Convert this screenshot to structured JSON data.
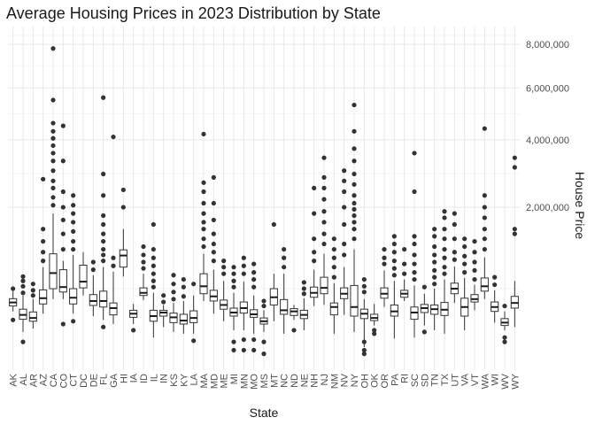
{
  "chart_data": {
    "type": "boxplot",
    "title": "Average Housing Prices in 2023 Distribution by State",
    "xlabel": "State",
    "ylabel": "House Price",
    "y_scale": "sqrt",
    "ylim": [
      0,
      8900000
    ],
    "y_ticks": [
      2000000,
      4000000,
      6000000,
      8000000
    ],
    "y_tick_labels": [
      "2,000,000",
      "4,000,000",
      "6,000,000",
      "8,000,000"
    ],
    "grid": true,
    "categories": [
      "AK",
      "AL",
      "AR",
      "AZ",
      "CA",
      "CO",
      "CT",
      "DC",
      "DE",
      "FL",
      "GA",
      "HI",
      "IA",
      "ID",
      "IL",
      "IN",
      "KS",
      "KY",
      "LA",
      "MA",
      "MD",
      "ME",
      "MI",
      "MN",
      "MO",
      "MS",
      "MT",
      "NC",
      "ND",
      "NE",
      "NH",
      "NJ",
      "NM",
      "NV",
      "NY",
      "OH",
      "OK",
      "OR",
      "PA",
      "RI",
      "SC",
      "SD",
      "TN",
      "TX",
      "UT",
      "VA",
      "VT",
      "WA",
      "WI",
      "WV",
      "WY"
    ],
    "boxes": [
      {
        "lower": 260000,
        "q1": 310000,
        "median": 345000,
        "q3": 385000,
        "upper": 470000,
        "outliers": [
          190000,
          500000
        ]
      },
      {
        "lower": 110000,
        "q1": 195000,
        "median": 230000,
        "q3": 280000,
        "upper": 420000,
        "outliers": [
          60000,
          450000,
          530000,
          600000,
          660000
        ]
      },
      {
        "lower": 130000,
        "q1": 180000,
        "median": 205000,
        "q3": 255000,
        "upper": 380000,
        "outliers": [
          420000,
          480000,
          560000
        ]
      },
      {
        "lower": 240000,
        "q1": 330000,
        "median": 390000,
        "q3": 485000,
        "upper": 800000,
        "outliers": [
          900000,
          1050000,
          1250000,
          1500000,
          2750000
        ]
      },
      {
        "lower": 380000,
        "q1": 500000,
        "median": 710000,
        "q3": 1020000,
        "upper": 1850000,
        "outliers": [
          2050000,
          2250000,
          2500000,
          2700000,
          3000000,
          3300000,
          3550000,
          3800000,
          4050000,
          4300000,
          4600000,
          5500000,
          7800000
        ]
      },
      {
        "lower": 380000,
        "q1": 460000,
        "median": 520000,
        "q3": 760000,
        "upper": 900000,
        "outliers": [
          160000,
          1100000,
          1400000,
          1700000,
          2000000,
          2400000,
          3300000,
          4500000
        ]
      },
      {
        "lower": 240000,
        "q1": 330000,
        "median": 395000,
        "q3": 500000,
        "upper": 1000000,
        "outliers": [
          180000,
          1100000,
          1250000,
          1450000,
          1650000,
          1850000,
          2050000,
          2300000
        ]
      },
      {
        "lower": 420000,
        "q1": 510000,
        "median": 590000,
        "q3": 830000,
        "upper": 1050000,
        "outliers": []
      },
      {
        "lower": 220000,
        "q1": 315000,
        "median": 360000,
        "q3": 430000,
        "upper": 680000,
        "outliers": [
          760000,
          880000
        ]
      },
      {
        "lower": 190000,
        "q1": 300000,
        "median": 360000,
        "q3": 470000,
        "upper": 800000,
        "outliers": [
          140000,
          900000,
          1000000,
          1100000,
          1250000,
          1400000,
          1600000,
          1800000,
          2300000,
          2900000,
          5600000
        ]
      },
      {
        "lower": 160000,
        "q1": 230000,
        "median": 290000,
        "q3": 340000,
        "upper": 730000,
        "outliers": [
          820000,
          950000,
          4100000
        ]
      },
      {
        "lower": 660000,
        "q1": 800000,
        "median": 990000,
        "q3": 1090000,
        "upper": 1500000,
        "outliers": [
          2000000,
          2450000
        ]
      },
      {
        "lower": 160000,
        "q1": 210000,
        "median": 240000,
        "q3": 270000,
        "upper": 330000,
        "outliers": [
          120000
        ]
      },
      {
        "lower": 370000,
        "q1": 420000,
        "median": 450000,
        "q3": 510000,
        "upper": 700000,
        "outliers": [
          780000,
          880000,
          1000000,
          1150000
        ]
      },
      {
        "lower": 80000,
        "q1": 180000,
        "median": 220000,
        "q3": 270000,
        "upper": 450000,
        "outliers": [
          520000,
          600000,
          700000,
          820000,
          950000,
          1100000,
          1600000
        ]
      },
      {
        "lower": 140000,
        "q1": 220000,
        "median": 250000,
        "q3": 270000,
        "upper": 320000,
        "outliers": [
          350000,
          420000
        ]
      },
      {
        "lower": 110000,
        "q1": 170000,
        "median": 210000,
        "q3": 245000,
        "upper": 340000,
        "outliers": [
          380000,
          460000,
          560000,
          680000
        ]
      },
      {
        "lower": 100000,
        "q1": 160000,
        "median": 185000,
        "q3": 235000,
        "upper": 360000,
        "outliers": [
          410000,
          520000,
          620000
        ]
      },
      {
        "lower": 100000,
        "q1": 170000,
        "median": 205000,
        "q3": 265000,
        "upper": 420000,
        "outliers": [
          65000,
          560000
        ]
      },
      {
        "lower": 360000,
        "q1": 440000,
        "median": 530000,
        "q3": 700000,
        "upper": 1020000,
        "outliers": [
          1150000,
          1300000,
          1500000,
          1650000,
          1850000,
          2100000,
          2400000,
          2650000,
          4200000
        ]
      },
      {
        "lower": 240000,
        "q1": 360000,
        "median": 410000,
        "q3": 480000,
        "upper": 760000,
        "outliers": [
          900000,
          1050000,
          1200000,
          1400000,
          1700000,
          2100000,
          2800000
        ]
      },
      {
        "lower": 180000,
        "q1": 280000,
        "median": 320000,
        "q3": 370000,
        "upper": 600000,
        "outliers": [
          700000,
          800000,
          900000
        ]
      },
      {
        "lower": 120000,
        "q1": 220000,
        "median": 250000,
        "q3": 290000,
        "upper": 450000,
        "outliers": [
          30000,
          60000,
          520000,
          600000,
          700000,
          800000
        ]
      },
      {
        "lower": 120000,
        "q1": 245000,
        "median": 290000,
        "q3": 350000,
        "upper": 590000,
        "outliers": [
          30000,
          70000,
          700000,
          820000,
          950000
        ]
      },
      {
        "lower": 100000,
        "q1": 210000,
        "median": 235000,
        "q3": 275000,
        "upper": 420000,
        "outliers": [
          30000,
          70000,
          520000,
          620000,
          720000,
          850000
        ]
      },
      {
        "lower": 110000,
        "q1": 160000,
        "median": 180000,
        "q3": 205000,
        "upper": 270000,
        "outliers": [
          20000,
          60000,
          310000,
          360000
        ]
      },
      {
        "lower": 180000,
        "q1": 320000,
        "median": 400000,
        "q3": 500000,
        "upper": 700000,
        "outliers": [
          1600000
        ]
      },
      {
        "lower": 100000,
        "q1": 235000,
        "median": 270000,
        "q3": 375000,
        "upper": 700000,
        "outliers": [
          800000,
          950000,
          1100000
        ]
      },
      {
        "lower": 190000,
        "q1": 225000,
        "median": 260000,
        "q3": 285000,
        "upper": 320000,
        "outliers": [
          120000
        ]
      },
      {
        "lower": 120000,
        "q1": 200000,
        "median": 230000,
        "q3": 270000,
        "upper": 390000,
        "outliers": [
          440000,
          500000,
          580000
        ]
      },
      {
        "lower": 310000,
        "q1": 400000,
        "median": 450000,
        "q3": 520000,
        "upper": 760000,
        "outliers": [
          900000,
          1050000,
          1300000,
          1850000,
          2500000
        ]
      },
      {
        "lower": 320000,
        "q1": 440000,
        "median": 510000,
        "q3": 650000,
        "upper": 1020000,
        "outliers": [
          1200000,
          1400000,
          1650000,
          1900000,
          2200000,
          2500000,
          2800000,
          3400000
        ]
      },
      {
        "lower": 100000,
        "q1": 230000,
        "median": 300000,
        "q3": 340000,
        "upper": 570000,
        "outliers": [
          650000,
          800000,
          950000,
          1100000,
          1300000
        ]
      },
      {
        "lower": 230000,
        "q1": 385000,
        "median": 440000,
        "q3": 510000,
        "upper": 800000,
        "outliers": [
          1000000,
          1200000,
          1600000,
          2000000,
          2400000,
          2700000,
          3000000
        ]
      },
      {
        "lower": 110000,
        "q1": 220000,
        "median": 300000,
        "q3": 540000,
        "upper": 1100000,
        "outliers": [
          1300000,
          1500000,
          1650000,
          1800000,
          1950000,
          2100000,
          2300000,
          2600000,
          2900000,
          3300000,
          3700000,
          4300000,
          5300000
        ]
      },
      {
        "lower": 40000,
        "q1": 200000,
        "median": 240000,
        "q3": 280000,
        "upper": 380000,
        "outliers": [
          20000,
          30000,
          60000,
          460000,
          530000,
          620000
        ]
      },
      {
        "lower": 150000,
        "q1": 185000,
        "median": 205000,
        "q3": 235000,
        "upper": 330000,
        "outliers": [
          100000,
          120000
        ]
      },
      {
        "lower": 300000,
        "q1": 390000,
        "median": 440000,
        "q3": 510000,
        "upper": 750000,
        "outliers": [
          850000,
          950000,
          1100000
        ]
      },
      {
        "lower": 75000,
        "q1": 220000,
        "median": 260000,
        "q3": 320000,
        "upper": 600000,
        "outliers": [
          680000,
          780000,
          900000,
          1050000,
          1200000,
          1350000
        ]
      },
      {
        "lower": 360000,
        "q1": 400000,
        "median": 440000,
        "q3": 480000,
        "upper": 620000,
        "outliers": [
          700000,
          850000,
          1100000
        ]
      },
      {
        "lower": 80000,
        "q1": 195000,
        "median": 250000,
        "q3": 300000,
        "upper": 540000,
        "outliers": [
          620000,
          720000,
          850000,
          1000000,
          1200000,
          1350000,
          2400000,
          3550000
        ]
      },
      {
        "lower": 150000,
        "q1": 250000,
        "median": 290000,
        "q3": 325000,
        "upper": 440000,
        "outliers": [
          110000,
          520000
        ]
      },
      {
        "lower": 120000,
        "q1": 235000,
        "median": 280000,
        "q3": 320000,
        "upper": 500000,
        "outliers": [
          560000,
          650000,
          750000,
          880000,
          1000000,
          1150000,
          1350000,
          1500000
        ]
      },
      {
        "lower": 100000,
        "q1": 225000,
        "median": 275000,
        "q3": 345000,
        "upper": 620000,
        "outliers": [
          700000,
          800000,
          950000,
          1100000,
          1300000,
          1500000,
          1750000,
          1900000
        ]
      },
      {
        "lower": 340000,
        "q1": 440000,
        "median": 500000,
        "q3": 570000,
        "upper": 810000,
        "outliers": [
          920000,
          1050000,
          1300000,
          1600000,
          1850000
        ]
      },
      {
        "lower": 120000,
        "q1": 220000,
        "median": 300000,
        "q3": 390000,
        "upper": 640000,
        "outliers": [
          720000,
          850000,
          980000,
          1150000,
          1300000
        ]
      },
      {
        "lower": 270000,
        "q1": 350000,
        "median": 380000,
        "q3": 430000,
        "upper": 550000,
        "outliers": [
          620000,
          750000,
          880000,
          1050000,
          1250000
        ]
      },
      {
        "lower": 380000,
        "q1": 470000,
        "median": 530000,
        "q3": 640000,
        "upper": 960000,
        "outliers": [
          1100000,
          1300000,
          1500000,
          1750000,
          2000000,
          2300000,
          4400000
        ]
      },
      {
        "lower": 170000,
        "q1": 260000,
        "median": 300000,
        "q3": 350000,
        "upper": 480000,
        "outliers": [
          550000,
          650000
        ]
      },
      {
        "lower": 120000,
        "q1": 150000,
        "median": 170000,
        "q3": 200000,
        "upper": 260000,
        "outliers": [
          60000,
          80000,
          310000
        ]
      },
      {
        "lower": 140000,
        "q1": 290000,
        "median": 340000,
        "q3": 410000,
        "upper": 600000,
        "outliers": [
          1400000,
          1500000,
          3100000,
          3400000
        ]
      }
    ]
  }
}
